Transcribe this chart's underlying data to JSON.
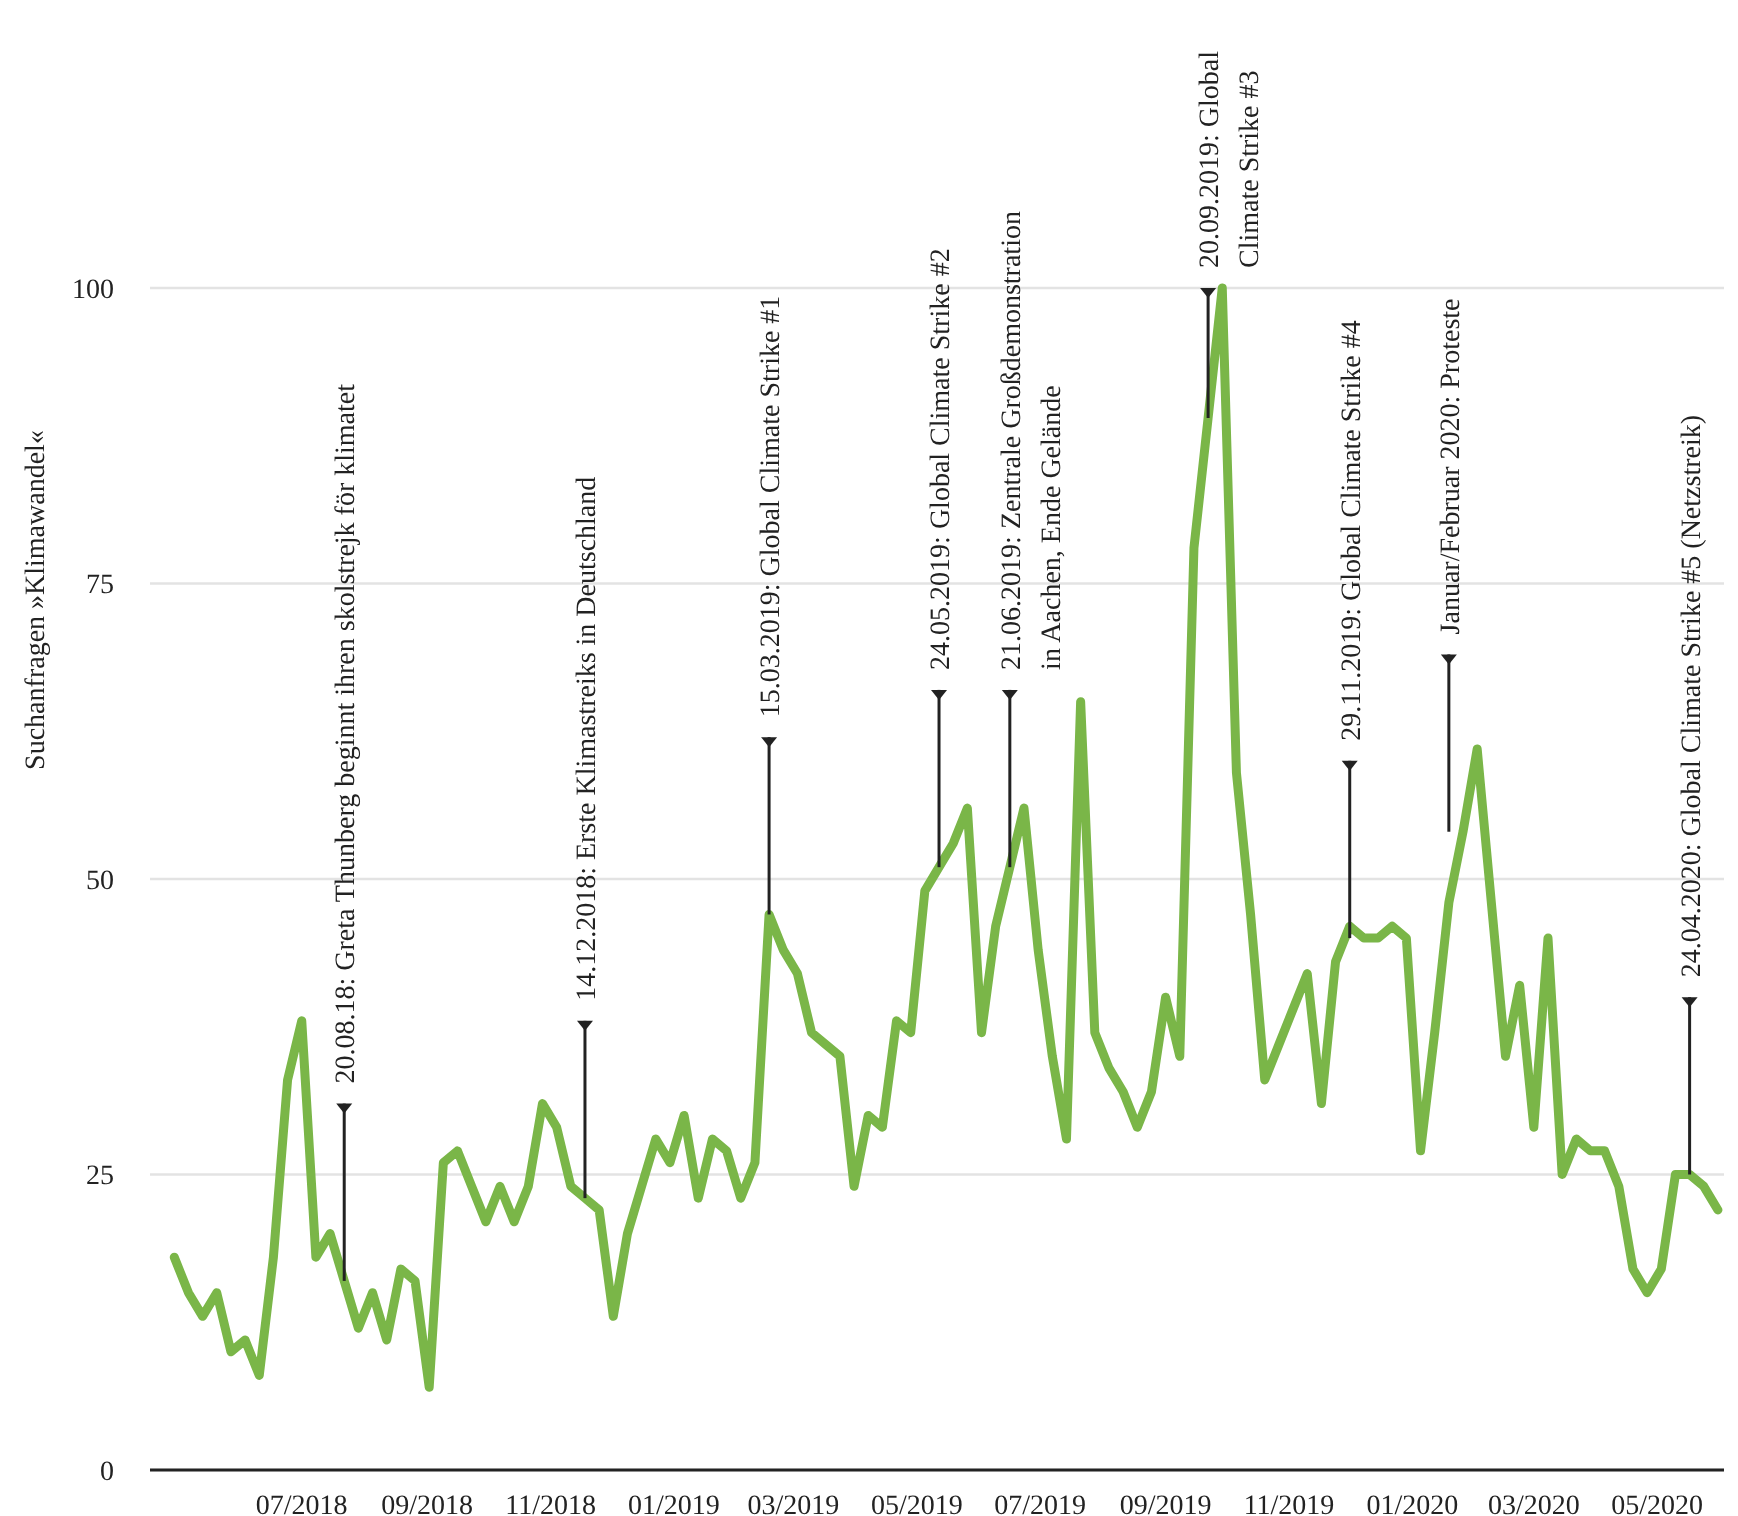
{
  "chart_data": {
    "type": "line",
    "ylabel": "Suchanfragen »Klimawandel«",
    "x": [
      "2018-04-29",
      "2018-05-06",
      "2018-05-13",
      "2018-05-20",
      "2018-05-27",
      "2018-06-03",
      "2018-06-10",
      "2018-06-17",
      "2018-06-24",
      "2018-07-01",
      "2018-07-08",
      "2018-07-15",
      "2018-07-22",
      "2018-07-29",
      "2018-08-05",
      "2018-08-12",
      "2018-08-19",
      "2018-08-26",
      "2018-09-02",
      "2018-09-09",
      "2018-09-16",
      "2018-09-23",
      "2018-09-30",
      "2018-10-07",
      "2018-10-14",
      "2018-10-21",
      "2018-10-28",
      "2018-11-04",
      "2018-11-11",
      "2018-11-18",
      "2018-11-25",
      "2018-12-02",
      "2018-12-09",
      "2018-12-16",
      "2018-12-23",
      "2018-12-30",
      "2019-01-06",
      "2019-01-13",
      "2019-01-20",
      "2019-01-27",
      "2019-02-03",
      "2019-02-10",
      "2019-02-17",
      "2019-02-24",
      "2019-03-03",
      "2019-03-10",
      "2019-03-17",
      "2019-03-24",
      "2019-03-31",
      "2019-04-07",
      "2019-04-14",
      "2019-04-21",
      "2019-04-28",
      "2019-05-05",
      "2019-05-12",
      "2019-05-19",
      "2019-05-26",
      "2019-06-02",
      "2019-06-09",
      "2019-06-16",
      "2019-06-23",
      "2019-06-30",
      "2019-07-07",
      "2019-07-14",
      "2019-07-21",
      "2019-07-28",
      "2019-08-04",
      "2019-08-11",
      "2019-08-18",
      "2019-08-25",
      "2019-09-01",
      "2019-09-08",
      "2019-09-15",
      "2019-09-22",
      "2019-09-29",
      "2019-10-06",
      "2019-10-13",
      "2019-10-20",
      "2019-10-27",
      "2019-11-03",
      "2019-11-10",
      "2019-11-17",
      "2019-11-24",
      "2019-12-01",
      "2019-12-08",
      "2019-12-15",
      "2019-12-22",
      "2019-12-29",
      "2020-01-05",
      "2020-01-12",
      "2020-01-19",
      "2020-01-26",
      "2020-02-02",
      "2020-02-09",
      "2020-02-16",
      "2020-02-23",
      "2020-03-01",
      "2020-03-08",
      "2020-03-15",
      "2020-03-22",
      "2020-03-29",
      "2020-04-05",
      "2020-04-12",
      "2020-04-19",
      "2020-04-26",
      "2020-05-03",
      "2020-05-10",
      "2020-05-17",
      "2020-05-24",
      "2020-05-31"
    ],
    "series": [
      {
        "color": "#7ab648",
        "values": [
          18,
          15,
          13,
          15,
          10,
          11,
          8,
          18,
          33,
          38,
          18,
          20,
          16,
          12,
          15,
          11,
          17,
          16,
          7,
          26,
          27,
          24,
          21,
          24,
          21,
          24,
          31,
          29,
          24,
          23,
          22,
          13,
          20,
          24,
          28,
          26,
          30,
          23,
          28,
          27,
          23,
          26,
          47,
          44,
          42,
          37,
          36,
          35,
          24,
          30,
          29,
          38,
          37,
          49,
          51,
          53,
          56,
          37,
          46,
          51,
          56,
          44,
          35,
          28,
          65,
          37,
          34,
          32,
          29,
          32,
          40,
          35,
          78,
          89,
          100,
          59,
          47,
          33,
          36,
          39,
          42,
          31,
          43,
          46,
          45,
          45,
          46,
          45,
          27,
          37,
          48,
          54,
          61,
          48,
          35,
          41,
          29,
          45,
          25,
          28,
          27,
          27,
          24,
          17,
          15,
          17,
          25,
          25,
          24,
          22
        ]
      }
    ],
    "xlim": [
      "2018-04-17",
      "2020-06-03"
    ],
    "xticks": [
      {
        "value": "2018-07-01",
        "label": "07/2018"
      },
      {
        "value": "2018-09-01",
        "label": "09/2018"
      },
      {
        "value": "2018-11-01",
        "label": "11/2018"
      },
      {
        "value": "2019-01-01",
        "label": "01/2019"
      },
      {
        "value": "2019-03-01",
        "label": "03/2019"
      },
      {
        "value": "2019-05-01",
        "label": "05/2019"
      },
      {
        "value": "2019-07-01",
        "label": "07/2019"
      },
      {
        "value": "2019-09-01",
        "label": "09/2019"
      },
      {
        "value": "2019-11-01",
        "label": "11/2019"
      },
      {
        "value": "2020-01-01",
        "label": "01/2020"
      },
      {
        "value": "2020-03-01",
        "label": "03/2020"
      },
      {
        "value": "2020-05-01",
        "label": "05/2020"
      }
    ],
    "ylim": [
      0,
      100
    ],
    "yticks": [
      0,
      25,
      50,
      75,
      100
    ],
    "grid": "y",
    "marker": "none",
    "line_style": "solid",
    "annotations": [
      {
        "text": "20.08.18:  Greta Thunberg beginnt ihren skolstrejk för klimatet",
        "x": "2018-07-22",
        "y": 16
      },
      {
        "text": "14.12.2018:  Erste Klimastreiks in Deutschland",
        "x": "2018-11-18",
        "y": 23
      },
      {
        "text": "15.03.2019:  Global Climate Strike #1",
        "x": "2019-02-17",
        "y": 47
      },
      {
        "text": "24.05.2019:  Global Climate Strike #2",
        "x": "2019-05-12",
        "y": 51
      },
      {
        "text": "21.06.2019:  Zentrale Großdemonstration\nin Aachen, Ende Gelände",
        "x": "2019-06-16",
        "y": 51
      },
      {
        "text": "20.09.2019: Global\nClimate Strike #3",
        "x": "2019-09-22",
        "y": 89
      },
      {
        "text": "29.11.2019:  Global Climate Strike #4",
        "x": "2019-12-01",
        "y": 45
      },
      {
        "text": "Januar/Februar 2020: Proteste",
        "x": "2020-01-19",
        "y": 54
      },
      {
        "text": "24.04.2020:   Global Climate Strike #5 (Netzstreik)",
        "x": "2020-05-17",
        "y": 25
      }
    ]
  }
}
